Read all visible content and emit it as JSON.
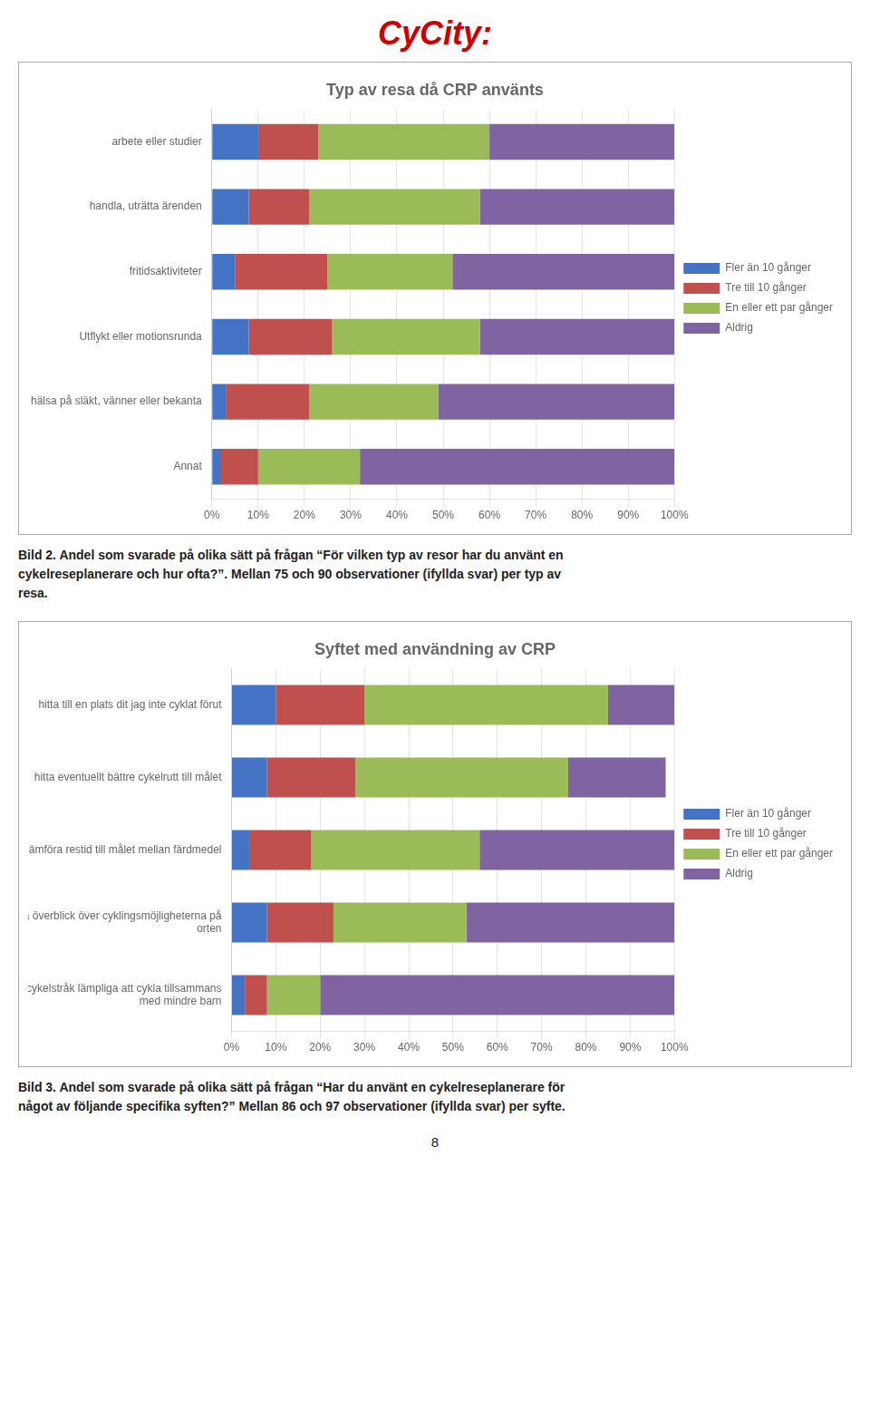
{
  "title": "CyCity:",
  "page_number": "8",
  "chart_data": [
    {
      "type": "bar",
      "orientation": "horizontal",
      "stacked": true,
      "title": "Typ av resa då CRP använts",
      "categories": [
        "arbete eller studier",
        "handla, uträtta ärenden",
        "fritidsaktiviteter",
        "Utflykt eller motionsrunda",
        "hälsa på släkt, vänner eller bekanta",
        "Annat"
      ],
      "series": [
        {
          "name": "Fler än 10 gånger",
          "color": "#4472C4",
          "values": [
            10,
            8,
            5,
            8,
            3,
            2
          ]
        },
        {
          "name": "Tre till 10 gånger",
          "color": "#C0504D",
          "values": [
            13,
            13,
            20,
            18,
            18,
            8
          ]
        },
        {
          "name": "En eller ett par gånger",
          "color": "#9BBB59",
          "values": [
            37,
            37,
            27,
            32,
            28,
            22
          ]
        },
        {
          "name": "Aldrig",
          "color": "#8064A2",
          "values": [
            40,
            42,
            48,
            42,
            51,
            68
          ]
        }
      ],
      "xlim": [
        0,
        100
      ],
      "xticks": [
        {
          "value": 0,
          "label": "0%"
        },
        {
          "value": 10,
          "label": "10%"
        },
        {
          "value": 20,
          "label": "20%"
        },
        {
          "value": 30,
          "label": "30%"
        },
        {
          "value": 40,
          "label": "40%"
        },
        {
          "value": 50,
          "label": "50%"
        },
        {
          "value": 60,
          "label": "60%"
        },
        {
          "value": 70,
          "label": "70%"
        },
        {
          "value": 80,
          "label": "80%"
        },
        {
          "value": 90,
          "label": "90%"
        },
        {
          "value": 100,
          "label": "100%"
        }
      ],
      "grid": true,
      "legend": "right",
      "annotations": [
        "Bild 2. Andel som svarade på olika sätt på frågan “För vilken typ av resor har du använt en\ncykelreseplanerare och hur ofta?”. Mellan 75 och 90 observationer (ifyllda svar) per typ av\nresa."
      ]
    },
    {
      "type": "bar",
      "orientation": "horizontal",
      "stacked": true,
      "title": "Syftet med användning av CRP",
      "categories": [
        "hitta till en plats dit jag inte cyklat förut",
        "hitta eventuellt bättre cykelrutt till målet",
        "jämföra restid till målet mellan färdmedel",
        "få överblick över cyklingsmöjligheterna på\norten",
        "hitta cykelstråk lämpliga att cykla tillsammans\nmed mindre barn"
      ],
      "series": [
        {
          "name": "Fler än 10 gånger",
          "color": "#4472C4",
          "values": [
            10,
            8,
            4,
            8,
            3
          ]
        },
        {
          "name": "Tre till 10 gånger",
          "color": "#C0504D",
          "values": [
            20,
            20,
            14,
            15,
            5
          ]
        },
        {
          "name": "En eller ett par gånger",
          "color": "#9BBB59",
          "values": [
            55,
            48,
            38,
            30,
            12
          ]
        },
        {
          "name": "Aldrig",
          "color": "#8064A2",
          "values": [
            15,
            22,
            44,
            47,
            80
          ]
        }
      ],
      "xlim": [
        0,
        100
      ],
      "xticks": [
        {
          "value": 0,
          "label": "0%"
        },
        {
          "value": 10,
          "label": "10%"
        },
        {
          "value": 20,
          "label": "20%"
        },
        {
          "value": 30,
          "label": "30%"
        },
        {
          "value": 40,
          "label": "40%"
        },
        {
          "value": 50,
          "label": "50%"
        },
        {
          "value": 60,
          "label": "60%"
        },
        {
          "value": 70,
          "label": "70%"
        },
        {
          "value": 80,
          "label": "80%"
        },
        {
          "value": 90,
          "label": "90%"
        },
        {
          "value": 100,
          "label": "100%"
        }
      ],
      "grid": true,
      "legend": "right",
      "annotations": [
        "Bild 3. Andel som svarade på olika sätt på frågan “Har du använt en cykelreseplanerare för\nnågot av följande specifika syften?” Mellan 86 och 97 observationer (ifyllda svar) per syfte."
      ]
    }
  ]
}
